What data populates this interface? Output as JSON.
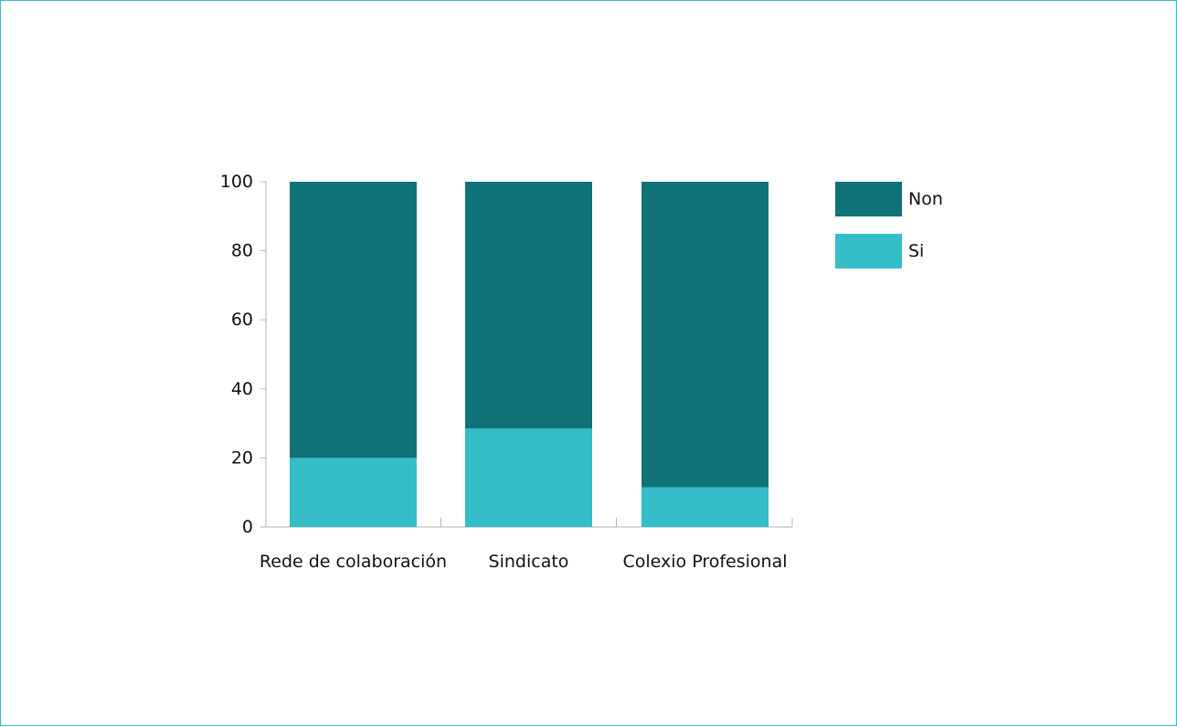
{
  "chart_data": {
    "type": "bar",
    "stacked": true,
    "categories": [
      "Rede de colaboración",
      "Sindicato",
      "Colexio Profesional"
    ],
    "series": [
      {
        "name": "Si",
        "values": [
          20,
          28.5,
          11.5
        ],
        "color": "#35bdc8"
      },
      {
        "name": "Non",
        "values": [
          80,
          71.5,
          88.5
        ],
        "color": "#0f7377"
      }
    ],
    "ylim": [
      0,
      100
    ],
    "yticks": [
      0,
      20,
      40,
      60,
      80,
      100
    ],
    "title": "",
    "xlabel": "",
    "ylabel": "",
    "legend": {
      "placement": "right",
      "order": [
        "Non",
        "Si"
      ]
    },
    "grid": false
  },
  "colors": {
    "frame_border": "#34bcc8",
    "axis": "#b3b3b3",
    "text": "#111111"
  }
}
